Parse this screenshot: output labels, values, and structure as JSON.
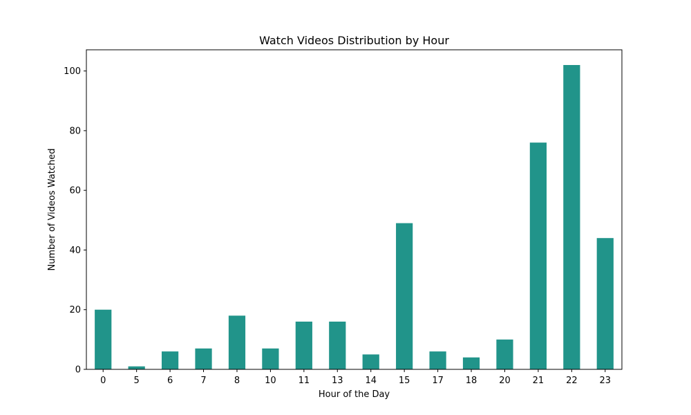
{
  "chart_data": {
    "type": "bar",
    "title": "Watch Videos Distribution by Hour",
    "xlabel": "Hour of the Day",
    "ylabel": "Number of Videos Watched",
    "categories": [
      "0",
      "5",
      "6",
      "7",
      "8",
      "10",
      "11",
      "13",
      "14",
      "15",
      "17",
      "18",
      "20",
      "21",
      "22",
      "23"
    ],
    "values": [
      20,
      1,
      6,
      7,
      18,
      7,
      16,
      16,
      5,
      49,
      6,
      4,
      10,
      76,
      102,
      44
    ],
    "ylim": [
      0,
      107.1
    ],
    "yticks": [
      0,
      20,
      40,
      60,
      80,
      100
    ],
    "bar_color": "#21948a",
    "grid": false,
    "legend": "none"
  }
}
